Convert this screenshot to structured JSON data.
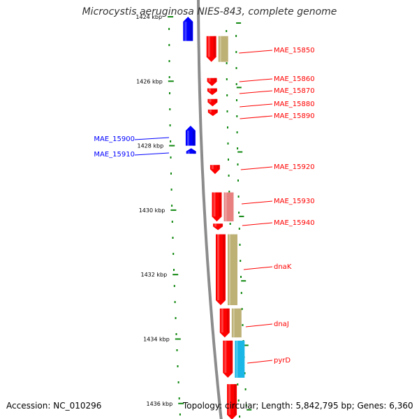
{
  "title": "Microcystis aeruginosa NIES-843, complete genome",
  "footer": {
    "accession": "Accession: NC_010296",
    "summary": "Topology: circular; Length: 5,842,795 bp; Genes: 6,360"
  },
  "colors": {
    "forward_gene": "#ff0000",
    "reverse_gene": "#0000ff",
    "cog_a": "#bdb176",
    "cog_b": "#e88080",
    "cog_c": "#19b6e6",
    "backbone": "#8c8c8c",
    "tick": "#118811"
  },
  "axis": {
    "unit": "kbp",
    "ticks": [
      {
        "value": 1424,
        "label": "1424 kbp"
      },
      {
        "value": 1426,
        "label": "1426 kbp"
      },
      {
        "value": 1428,
        "label": "1428 kbp"
      },
      {
        "value": 1430,
        "label": "1430 kbp"
      },
      {
        "value": 1432,
        "label": "1432 kbp"
      },
      {
        "value": 1434,
        "label": "1434 kbp"
      },
      {
        "value": 1436,
        "label": "1436 kbp"
      }
    ]
  },
  "genes": [
    {
      "name": "",
      "strand": "-",
      "start": 1424.0,
      "end": 1424.75
    },
    {
      "name": "MAE_15850",
      "strand": "+",
      "start": 1424.6,
      "end": 1425.4,
      "cog": "cog_a"
    },
    {
      "name": "MAE_15860",
      "strand": "+",
      "start": 1425.9,
      "end": 1426.15
    },
    {
      "name": "MAE_15870",
      "strand": "+",
      "start": 1426.22,
      "end": 1426.43
    },
    {
      "name": "MAE_15880",
      "strand": "+",
      "start": 1426.55,
      "end": 1426.78
    },
    {
      "name": "MAE_15890",
      "strand": "+",
      "start": 1426.88,
      "end": 1427.08
    },
    {
      "name": "MAE_15900",
      "strand": "-",
      "start": 1427.38,
      "end": 1428.0
    },
    {
      "name": "MAE_15910",
      "strand": "-",
      "start": 1428.08,
      "end": 1428.25
    },
    {
      "name": "MAE_15920",
      "strand": "+",
      "start": 1428.6,
      "end": 1428.88
    },
    {
      "name": "MAE_15930",
      "strand": "+",
      "start": 1429.45,
      "end": 1430.35,
      "cog": "cog_b"
    },
    {
      "name": "MAE_15940",
      "strand": "+",
      "start": 1430.42,
      "end": 1430.62
    },
    {
      "name": "dnaK",
      "strand": "+",
      "start": 1430.75,
      "end": 1432.95,
      "cog": "cog_a"
    },
    {
      "name": "dnaJ",
      "strand": "+",
      "start": 1433.05,
      "end": 1433.95,
      "cog": "cog_a"
    },
    {
      "name": "pyrD",
      "strand": "+",
      "start": 1434.05,
      "end": 1435.2,
      "cog": "cog_c"
    },
    {
      "name": "",
      "strand": "+",
      "start": 1435.4,
      "end": 1436.5
    }
  ]
}
